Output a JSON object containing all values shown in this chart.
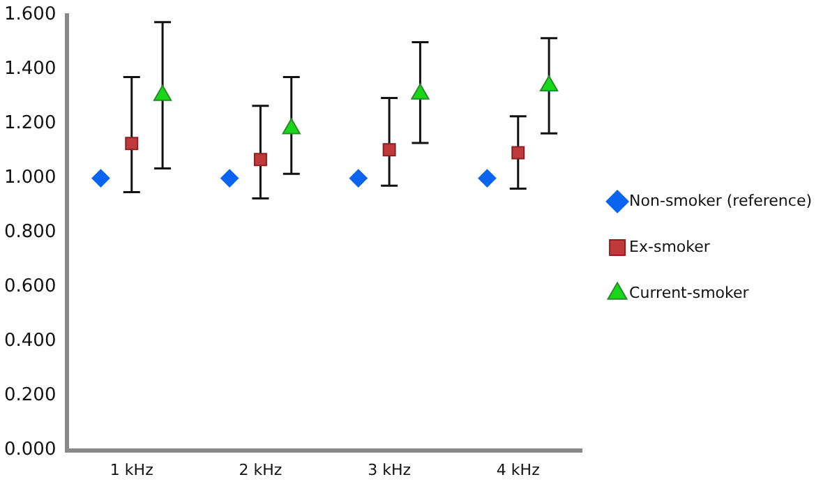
{
  "chart_data": {
    "type": "scatter",
    "categories": [
      "1 kHz",
      "2 kHz",
      "3 kHz",
      "4 kHz"
    ],
    "series": [
      {
        "name": "Non-smoker (reference)",
        "color": "#0a64f0",
        "marker": "diamond",
        "values": [
          1.0,
          1.0,
          1.0,
          1.0
        ]
      },
      {
        "name": "Ex-smoker",
        "color": "#c0393b",
        "marker": "square",
        "values": [
          1.128,
          1.069,
          1.105,
          1.094
        ],
        "errors": [
          [
            0.949,
            1.372
          ],
          [
            0.926,
            1.266
          ],
          [
            0.973,
            1.295
          ],
          [
            0.962,
            1.228
          ]
        ]
      },
      {
        "name": "Current-smoker",
        "color": "#18d818",
        "marker": "triangle",
        "values": [
          1.305,
          1.182,
          1.31,
          1.34
        ],
        "errors": [
          [
            1.036,
            1.574
          ],
          [
            1.016,
            1.372
          ],
          [
            1.13,
            1.5
          ],
          [
            1.165,
            1.515
          ]
        ]
      }
    ],
    "ylim": [
      0,
      1.6
    ],
    "yticks": [
      {
        "value": 0,
        "label": "0.000"
      },
      {
        "value": 0.2,
        "label": "0.200"
      },
      {
        "value": 0.4,
        "label": "0.400"
      },
      {
        "value": 0.6,
        "label": "0.600"
      },
      {
        "value": 0.8,
        "label": "0.800"
      },
      {
        "value": 1,
        "label": "1.000"
      },
      {
        "value": 1.2,
        "label": "1.200"
      },
      {
        "value": 1.4,
        "label": "1.400"
      },
      {
        "value": 1.6,
        "label": "1.600"
      }
    ],
    "grid": false,
    "legend": "right"
  }
}
